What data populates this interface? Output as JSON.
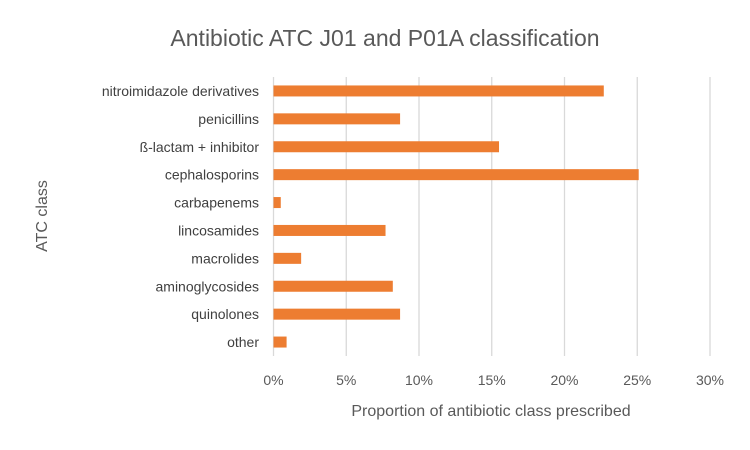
{
  "chart_data": {
    "type": "bar",
    "orientation": "horizontal",
    "title": "Antibiotic ATC J01 and P01A classification",
    "xlabel": "Proportion of antibiotic class prescribed",
    "ylabel": "ATC class",
    "categories": [
      "nitroimidazole derivatives",
      "penicillins",
      "ß-lactam + inhibitor",
      "cephalosporins",
      "carbapenems",
      "lincosamides",
      "macrolides",
      "aminoglycosides",
      "quinolones",
      "other"
    ],
    "values": [
      22.7,
      8.7,
      15.5,
      25.1,
      0.5,
      7.7,
      1.9,
      8.2,
      8.7,
      0.9
    ],
    "value_unit": "%",
    "xlim": [
      0,
      30
    ],
    "xticks": [
      "0%",
      "5%",
      "10%",
      "15%",
      "20%",
      "25%",
      "30%"
    ],
    "grid": true,
    "bar_color": "#ED7D31",
    "grid_color": "#D9D9D9"
  }
}
